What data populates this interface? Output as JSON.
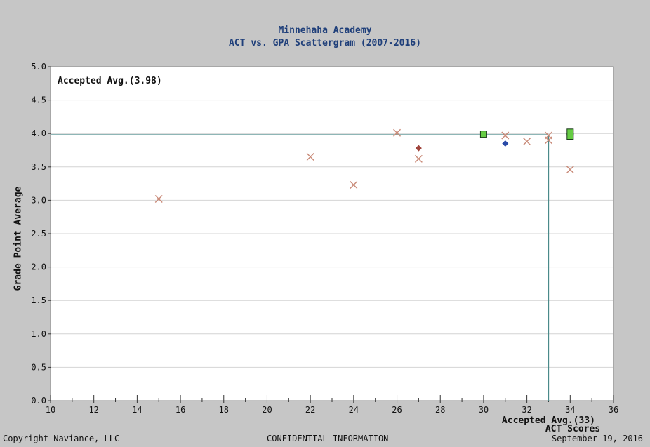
{
  "chart_data": {
    "type": "scatter",
    "title": "Minnehaha Academy",
    "subtitle": "ACT vs. GPA Scattergram (2007-2016)",
    "xlabel": "ACT Scores",
    "ylabel": "Grade Point Average",
    "xlim": [
      10,
      36
    ],
    "ylim": [
      0.0,
      5.0
    ],
    "x_ticks": [
      10,
      12,
      14,
      16,
      18,
      20,
      22,
      24,
      26,
      28,
      30,
      32,
      34,
      36
    ],
    "y_ticks": [
      "0.0",
      "0.5",
      "1.0",
      "1.5",
      "2.0",
      "2.5",
      "3.0",
      "3.5",
      "4.0",
      "4.5",
      "5.0"
    ],
    "grid": true,
    "accepted_avg_gpa": 3.98,
    "accepted_avg_act": 33,
    "accepted_avg_gpa_label": "Accepted Avg.(3.98)",
    "accepted_avg_act_label": "Accepted Avg.(33)",
    "series": [
      {
        "marker": "x",
        "color": "#c98a78",
        "points": [
          [
            15,
            3.02
          ],
          [
            22,
            3.65
          ],
          [
            24,
            3.23
          ],
          [
            26,
            4.01
          ],
          [
            27,
            3.62
          ],
          [
            31,
            3.97
          ],
          [
            32,
            3.88
          ],
          [
            33,
            3.97
          ],
          [
            33,
            3.9
          ],
          [
            34,
            3.46
          ]
        ]
      },
      {
        "marker": "square",
        "color": "#66cc44",
        "points": [
          [
            30,
            3.99
          ],
          [
            34,
            4.02
          ],
          [
            34,
            3.96
          ]
        ]
      },
      {
        "marker": "diamond",
        "color": "#a0443c",
        "points": [
          [
            27,
            3.78
          ]
        ]
      },
      {
        "marker": "diamond",
        "color": "#2a4aa8",
        "points": [
          [
            31,
            3.85
          ]
        ]
      }
    ]
  },
  "footer": {
    "left": "Copyright Naviance, LLC",
    "center": "CONFIDENTIAL INFORMATION",
    "right": "September 19, 2016"
  }
}
